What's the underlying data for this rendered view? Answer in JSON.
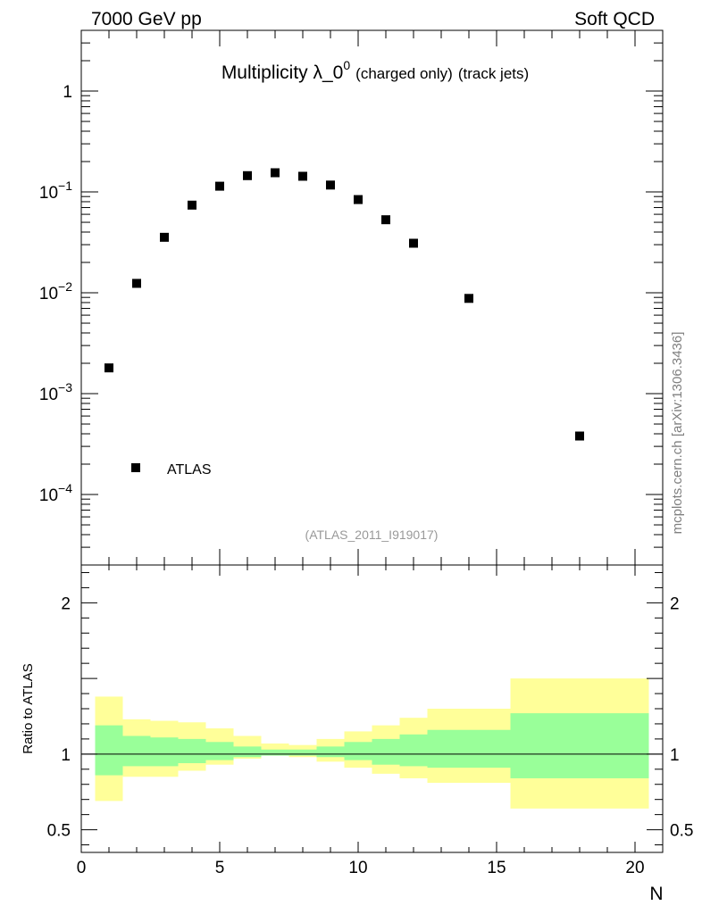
{
  "header": {
    "left": "7000 GeV pp",
    "right": "Soft QCD"
  },
  "side_label": "mcplots.cern.ch [arXiv:1306.3436]",
  "colors": {
    "band_outer": "#ffff99",
    "band_inner": "#99ff99",
    "marker": "#000000",
    "source_text": "#999999"
  },
  "chart_data": [
    {
      "type": "scatter",
      "title": {
        "main": "Multiplicity λ_0",
        "sup": "0",
        "sub1": "(charged only)",
        "sub2": "(track jets)"
      },
      "source": "(ATLAS_2011_I919017)",
      "legend": {
        "entries": [
          "ATLAS"
        ],
        "placement": "bottom-left"
      },
      "yscale": "log",
      "xlim": [
        0,
        21
      ],
      "ylim": [
        2e-05,
        4
      ],
      "x_ticks": [
        "0",
        "5",
        "10",
        "15",
        "20"
      ],
      "y_ticks": [
        {
          "value": 1,
          "label": "1",
          "exp": ""
        },
        {
          "value": 0.1,
          "label": "10",
          "exp": "−1"
        },
        {
          "value": 0.01,
          "label": "10",
          "exp": "−2"
        },
        {
          "value": 0.001,
          "label": "10",
          "exp": "−3"
        },
        {
          "value": 0.0001,
          "label": "10",
          "exp": "−4"
        }
      ],
      "series": [
        {
          "name": "ATLAS",
          "x": [
            1,
            2,
            3,
            4,
            5,
            6,
            7,
            8,
            9,
            10,
            11,
            12,
            14,
            18
          ],
          "y": [
            0.0018,
            0.0124,
            0.0355,
            0.074,
            0.114,
            0.145,
            0.155,
            0.143,
            0.117,
            0.084,
            0.053,
            0.031,
            0.0088,
            0.00038
          ]
        }
      ]
    },
    {
      "type": "area",
      "ylabel": "Ratio to ATLAS",
      "xlabel": "N",
      "xlim": [
        0,
        21
      ],
      "ylim": [
        0.35,
        2.25
      ],
      "x_ticks": [
        "0",
        "5",
        "10",
        "15",
        "20"
      ],
      "y_ticks": [
        "0.5",
        "1",
        "2"
      ],
      "reference_line": 1,
      "bins": [
        {
          "x0": 0.5,
          "x1": 1.5,
          "outer": [
            0.69,
            1.38
          ],
          "inner": [
            0.86,
            1.19
          ]
        },
        {
          "x0": 1.5,
          "x1": 2.5,
          "outer": [
            0.85,
            1.23
          ],
          "inner": [
            0.92,
            1.12
          ]
        },
        {
          "x0": 2.5,
          "x1": 3.5,
          "outer": [
            0.85,
            1.22
          ],
          "inner": [
            0.92,
            1.11
          ]
        },
        {
          "x0": 3.5,
          "x1": 4.5,
          "outer": [
            0.89,
            1.21
          ],
          "inner": [
            0.94,
            1.1
          ]
        },
        {
          "x0": 4.5,
          "x1": 5.5,
          "outer": [
            0.93,
            1.17
          ],
          "inner": [
            0.96,
            1.08
          ]
        },
        {
          "x0": 5.5,
          "x1": 6.5,
          "outer": [
            0.97,
            1.12
          ],
          "inner": [
            0.98,
            1.05
          ]
        },
        {
          "x0": 6.5,
          "x1": 7.5,
          "outer": [
            0.99,
            1.07
          ],
          "inner": [
            0.99,
            1.03
          ]
        },
        {
          "x0": 7.5,
          "x1": 8.5,
          "outer": [
            0.98,
            1.06
          ],
          "inner": [
            0.99,
            1.03
          ]
        },
        {
          "x0": 8.5,
          "x1": 9.5,
          "outer": [
            0.95,
            1.1
          ],
          "inner": [
            0.98,
            1.05
          ]
        },
        {
          "x0": 9.5,
          "x1": 10.5,
          "outer": [
            0.91,
            1.15
          ],
          "inner": [
            0.96,
            1.08
          ]
        },
        {
          "x0": 10.5,
          "x1": 11.5,
          "outer": [
            0.87,
            1.19
          ],
          "inner": [
            0.93,
            1.1
          ]
        },
        {
          "x0": 11.5,
          "x1": 12.5,
          "outer": [
            0.84,
            1.24
          ],
          "inner": [
            0.92,
            1.13
          ]
        },
        {
          "x0": 12.5,
          "x1": 15.5,
          "outer": [
            0.81,
            1.3
          ],
          "inner": [
            0.91,
            1.16
          ]
        },
        {
          "x0": 15.5,
          "x1": 20.5,
          "outer": [
            0.64,
            1.5
          ],
          "inner": [
            0.84,
            1.27
          ]
        }
      ]
    }
  ]
}
